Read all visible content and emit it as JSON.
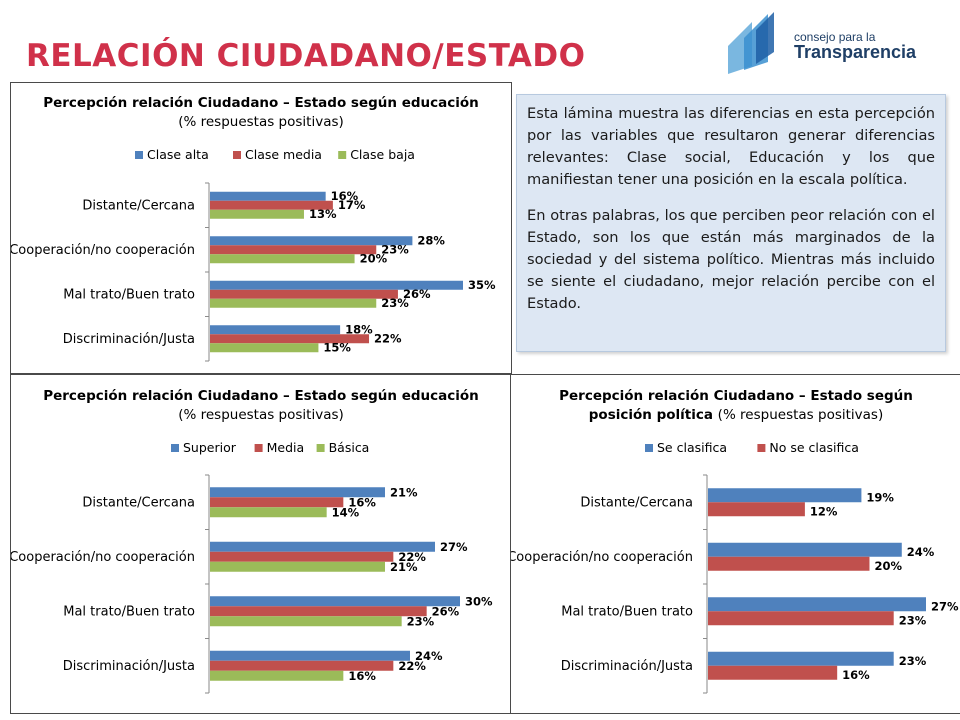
{
  "slide": {
    "title": "RELACIÓN CIUDADANO/ESTADO"
  },
  "logo": {
    "line1": "consejo para la",
    "line2": "Transparencia"
  },
  "textbox": {
    "p1": "Esta lámina muestra las diferencias en esta percepción por las variables que resultaron generar diferencias relevantes: Clase social, Educación y los que manifiestan tener una posición en la escala política.",
    "p2": "En otras palabras, los que perciben peor relación con el Estado, son los que están más marginados de la sociedad y del sistema político. Mientras más incluido se siente el ciudadano, mejor relación percibe con el Estado."
  },
  "colors": {
    "blue": "#4f81bd",
    "red": "#c0504d",
    "green": "#9bbb59"
  },
  "chart_data": [
    {
      "type": "bar",
      "orientation": "horizontal",
      "title": "Percepción relación Ciudadano – Estado según educación",
      "subtitle": "(% respuestas positivas)",
      "legend_position": "top",
      "categories": [
        "Distante/Cercana",
        "Cooperación/no cooperación",
        "Mal trato/Buen trato",
        "Discriminación/Justa"
      ],
      "series": [
        {
          "name": "Clase alta",
          "color": "#4f81bd",
          "values": [
            16,
            28,
            35,
            18
          ]
        },
        {
          "name": "Clase media",
          "color": "#c0504d",
          "values": [
            17,
            23,
            26,
            22
          ]
        },
        {
          "name": "Clase baja",
          "color": "#9bbb59",
          "values": [
            13,
            20,
            23,
            15
          ]
        }
      ],
      "value_suffix": "%",
      "xlim": [
        0,
        35
      ],
      "grid": false
    },
    {
      "type": "bar",
      "orientation": "horizontal",
      "title": "Percepción relación Ciudadano – Estado según educación",
      "subtitle": "(% respuestas positivas)",
      "legend_position": "top",
      "categories": [
        "Distante/Cercana",
        "Cooperación/no cooperación",
        "Mal trato/Buen trato",
        "Discriminación/Justa"
      ],
      "series": [
        {
          "name": "Superior",
          "color": "#4f81bd",
          "values": [
            21,
            27,
            30,
            24
          ]
        },
        {
          "name": "Media",
          "color": "#c0504d",
          "values": [
            16,
            22,
            26,
            22
          ]
        },
        {
          "name": "Básica",
          "color": "#9bbb59",
          "values": [
            14,
            21,
            23,
            16
          ]
        }
      ],
      "value_suffix": "%",
      "xlim": [
        0,
        30
      ],
      "grid": false
    },
    {
      "type": "bar",
      "orientation": "horizontal",
      "title": "Percepción relación Ciudadano – Estado según",
      "subtitle_bold": "posición política",
      "subtitle": "(% respuestas positivas)",
      "legend_position": "top",
      "categories": [
        "Distante/Cercana",
        "Cooperación/no cooperación",
        "Mal trato/Buen trato",
        "Discriminación/Justa"
      ],
      "series": [
        {
          "name": "Se clasifica",
          "color": "#4f81bd",
          "values": [
            19,
            24,
            27,
            23
          ]
        },
        {
          "name": "No se clasifica",
          "color": "#c0504d",
          "values": [
            12,
            20,
            23,
            16
          ]
        }
      ],
      "value_suffix": "%",
      "xlim": [
        0,
        27
      ],
      "grid": false
    }
  ]
}
